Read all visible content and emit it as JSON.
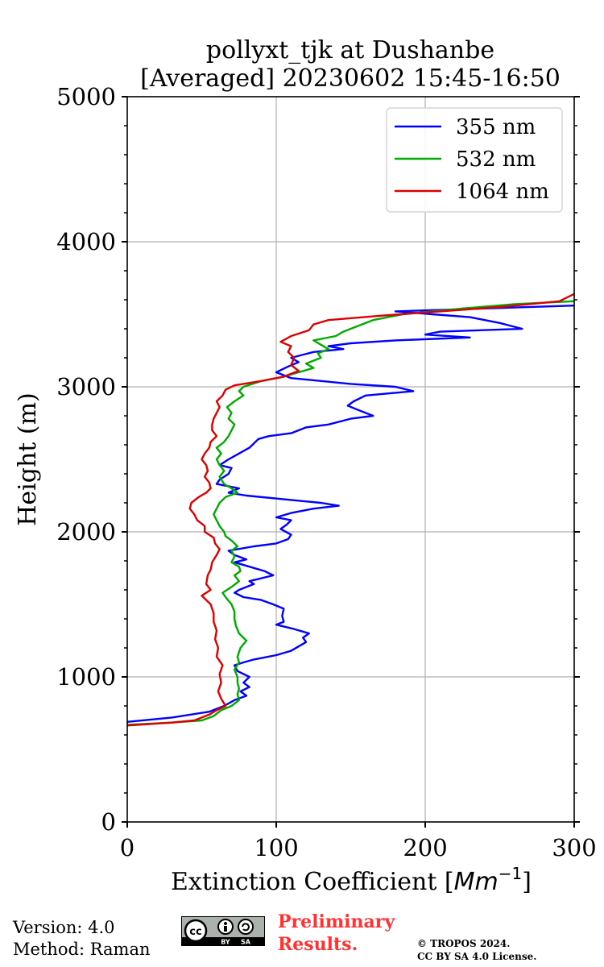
{
  "chart_data": {
    "type": "line",
    "title_line1": "pollyxt_tjk at Dushanbe",
    "title_line2": "[Averaged] 20230602 15:45-16:50",
    "xlabel_text": "Extinction Coefficient [",
    "xlabel_unit": "Mm",
    "xlabel_exp": "−1",
    "xlabel_close": "]",
    "ylabel": "Height (m)",
    "xlim": [
      0,
      300
    ],
    "ylim": [
      0,
      5000
    ],
    "x_ticks": [
      0,
      100,
      200,
      300
    ],
    "y_ticks": [
      0,
      1000,
      2000,
      3000,
      4000,
      5000
    ],
    "grid": true,
    "legend_position": "top-right",
    "series": [
      {
        "name": "355 nm",
        "color": "#0000ff",
        "points": [
          [
            0,
            690
          ],
          [
            30,
            720
          ],
          [
            55,
            760
          ],
          [
            65,
            800
          ],
          [
            72,
            840
          ],
          [
            80,
            870
          ],
          [
            76,
            900
          ],
          [
            82,
            930
          ],
          [
            78,
            960
          ],
          [
            82,
            1000
          ],
          [
            74,
            1040
          ],
          [
            72,
            1080
          ],
          [
            78,
            1100
          ],
          [
            85,
            1120
          ],
          [
            100,
            1150
          ],
          [
            110,
            1180
          ],
          [
            115,
            1210
          ],
          [
            120,
            1240
          ],
          [
            118,
            1270
          ],
          [
            122,
            1300
          ],
          [
            112,
            1330
          ],
          [
            100,
            1360
          ],
          [
            105,
            1380
          ],
          [
            104,
            1420
          ],
          [
            105,
            1470
          ],
          [
            98,
            1500
          ],
          [
            90,
            1530
          ],
          [
            78,
            1550
          ],
          [
            72,
            1580
          ],
          [
            75,
            1600
          ],
          [
            85,
            1640
          ],
          [
            82,
            1660
          ],
          [
            98,
            1700
          ],
          [
            92,
            1730
          ],
          [
            82,
            1760
          ],
          [
            72,
            1790
          ],
          [
            80,
            1810
          ],
          [
            72,
            1840
          ],
          [
            68,
            1870
          ],
          [
            85,
            1900
          ],
          [
            100,
            1920
          ],
          [
            108,
            1950
          ],
          [
            110,
            1980
          ],
          [
            103,
            2020
          ],
          [
            107,
            2050
          ],
          [
            110,
            2080
          ],
          [
            100,
            2100
          ],
          [
            110,
            2130
          ],
          [
            125,
            2160
          ],
          [
            142,
            2180
          ],
          [
            130,
            2200
          ],
          [
            110,
            2220
          ],
          [
            80,
            2250
          ],
          [
            68,
            2270
          ],
          [
            75,
            2300
          ],
          [
            60,
            2330
          ],
          [
            62,
            2360
          ],
          [
            68,
            2400
          ],
          [
            70,
            2440
          ],
          [
            62,
            2460
          ],
          [
            68,
            2500
          ],
          [
            75,
            2540
          ],
          [
            82,
            2580
          ],
          [
            85,
            2610
          ],
          [
            88,
            2640
          ],
          [
            95,
            2660
          ],
          [
            110,
            2680
          ],
          [
            120,
            2720
          ],
          [
            135,
            2740
          ],
          [
            150,
            2780
          ],
          [
            165,
            2800
          ],
          [
            155,
            2840
          ],
          [
            148,
            2870
          ],
          [
            152,
            2900
          ],
          [
            160,
            2940
          ],
          [
            192,
            2970
          ],
          [
            180,
            3000
          ],
          [
            150,
            3020
          ],
          [
            110,
            3060
          ],
          [
            100,
            3100
          ],
          [
            108,
            3140
          ],
          [
            115,
            3170
          ],
          [
            110,
            3200
          ],
          [
            125,
            3240
          ],
          [
            145,
            3260
          ],
          [
            135,
            3280
          ],
          [
            150,
            3300
          ],
          [
            180,
            3320
          ],
          [
            230,
            3340
          ],
          [
            200,
            3360
          ],
          [
            210,
            3380
          ],
          [
            265,
            3400
          ],
          [
            250,
            3440
          ],
          [
            230,
            3480
          ],
          [
            205,
            3500
          ],
          [
            180,
            3520
          ],
          [
            240,
            3540
          ],
          [
            300,
            3560
          ]
        ]
      },
      {
        "name": "532 nm",
        "color": "#00aa00",
        "points": [
          [
            0,
            670
          ],
          [
            30,
            685
          ],
          [
            50,
            700
          ],
          [
            58,
            730
          ],
          [
            63,
            770
          ],
          [
            70,
            800
          ],
          [
            75,
            840
          ],
          [
            74,
            880
          ],
          [
            75,
            920
          ],
          [
            74,
            960
          ],
          [
            74,
            1000
          ],
          [
            72,
            1050
          ],
          [
            75,
            1100
          ],
          [
            74,
            1140
          ],
          [
            76,
            1200
          ],
          [
            80,
            1250
          ],
          [
            75,
            1300
          ],
          [
            73,
            1350
          ],
          [
            72,
            1400
          ],
          [
            72,
            1450
          ],
          [
            70,
            1500
          ],
          [
            66,
            1550
          ],
          [
            64,
            1580
          ],
          [
            70,
            1620
          ],
          [
            75,
            1660
          ],
          [
            72,
            1700
          ],
          [
            76,
            1730
          ],
          [
            75,
            1760
          ],
          [
            70,
            1790
          ],
          [
            72,
            1830
          ],
          [
            70,
            1870
          ],
          [
            74,
            1900
          ],
          [
            70,
            1940
          ],
          [
            66,
            1970
          ],
          [
            65,
            2000
          ],
          [
            62,
            2040
          ],
          [
            60,
            2080
          ],
          [
            58,
            2120
          ],
          [
            60,
            2160
          ],
          [
            62,
            2200
          ],
          [
            66,
            2240
          ],
          [
            74,
            2270
          ],
          [
            70,
            2300
          ],
          [
            65,
            2330
          ],
          [
            62,
            2380
          ],
          [
            65,
            2420
          ],
          [
            62,
            2460
          ],
          [
            60,
            2500
          ],
          [
            63,
            2540
          ],
          [
            60,
            2580
          ],
          [
            65,
            2620
          ],
          [
            68,
            2660
          ],
          [
            70,
            2700
          ],
          [
            72,
            2740
          ],
          [
            68,
            2780
          ],
          [
            70,
            2820
          ],
          [
            67,
            2860
          ],
          [
            72,
            2900
          ],
          [
            78,
            2940
          ],
          [
            75,
            2970
          ],
          [
            78,
            3000
          ],
          [
            90,
            3040
          ],
          [
            105,
            3070
          ],
          [
            115,
            3100
          ],
          [
            125,
            3130
          ],
          [
            120,
            3160
          ],
          [
            130,
            3200
          ],
          [
            128,
            3230
          ],
          [
            135,
            3260
          ],
          [
            130,
            3290
          ],
          [
            125,
            3320
          ],
          [
            140,
            3350
          ],
          [
            145,
            3380
          ],
          [
            155,
            3420
          ],
          [
            165,
            3460
          ],
          [
            185,
            3500
          ],
          [
            225,
            3540
          ],
          [
            260,
            3570
          ],
          [
            300,
            3590
          ]
        ]
      },
      {
        "name": "1064 nm",
        "color": "#dd0000",
        "points": [
          [
            0,
            665
          ],
          [
            30,
            685
          ],
          [
            45,
            700
          ],
          [
            55,
            740
          ],
          [
            60,
            770
          ],
          [
            66,
            800
          ],
          [
            63,
            850
          ],
          [
            61,
            900
          ],
          [
            63,
            960
          ],
          [
            62,
            1020
          ],
          [
            64,
            1080
          ],
          [
            60,
            1140
          ],
          [
            61,
            1200
          ],
          [
            59,
            1260
          ],
          [
            60,
            1320
          ],
          [
            58,
            1380
          ],
          [
            58,
            1440
          ],
          [
            56,
            1500
          ],
          [
            50,
            1560
          ],
          [
            56,
            1600
          ],
          [
            53,
            1640
          ],
          [
            54,
            1700
          ],
          [
            56,
            1740
          ],
          [
            57,
            1790
          ],
          [
            60,
            1840
          ],
          [
            62,
            1880
          ],
          [
            59,
            1920
          ],
          [
            58,
            1960
          ],
          [
            52,
            2000
          ],
          [
            52,
            2040
          ],
          [
            47,
            2080
          ],
          [
            45,
            2120
          ],
          [
            42,
            2160
          ],
          [
            43,
            2200
          ],
          [
            48,
            2240
          ],
          [
            53,
            2270
          ],
          [
            56,
            2300
          ],
          [
            55,
            2340
          ],
          [
            52,
            2380
          ],
          [
            54,
            2420
          ],
          [
            53,
            2460
          ],
          [
            50,
            2500
          ],
          [
            52,
            2540
          ],
          [
            55,
            2580
          ],
          [
            56,
            2620
          ],
          [
            60,
            2660
          ],
          [
            57,
            2700
          ],
          [
            57,
            2740
          ],
          [
            58,
            2780
          ],
          [
            60,
            2820
          ],
          [
            62,
            2860
          ],
          [
            60,
            2900
          ],
          [
            64,
            2940
          ],
          [
            66,
            2980
          ],
          [
            72,
            3010
          ],
          [
            90,
            3040
          ],
          [
            105,
            3070
          ],
          [
            115,
            3110
          ],
          [
            110,
            3150
          ],
          [
            112,
            3200
          ],
          [
            108,
            3240
          ],
          [
            110,
            3280
          ],
          [
            103,
            3310
          ],
          [
            110,
            3350
          ],
          [
            122,
            3390
          ],
          [
            125,
            3430
          ],
          [
            135,
            3460
          ],
          [
            170,
            3490
          ],
          [
            210,
            3520
          ],
          [
            250,
            3550
          ],
          [
            290,
            3590
          ],
          [
            300,
            3640
          ]
        ]
      }
    ]
  },
  "footer": {
    "version": "Version: 4.0",
    "method": "Method: Raman",
    "preliminary_line1": "Preliminary",
    "preliminary_line2": "Results.",
    "copyright_line1": "© TROPOS 2024.",
    "copyright_line2": "CC BY SA 4.0 License.",
    "preliminary_color": "#ff3333",
    "license_badge_left": "BY",
    "license_badge_right": "SA",
    "license_badge_mark": "cc"
  }
}
